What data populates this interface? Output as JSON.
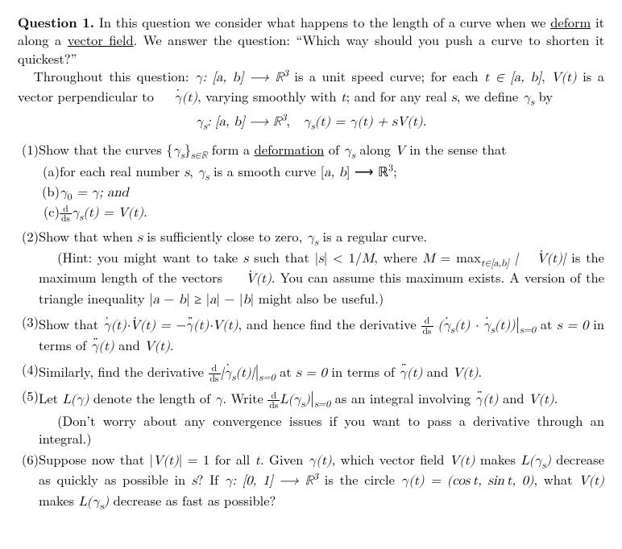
{
  "header": {
    "label": "Question 1.",
    "intro1": "In this question we consider what happens to the length of a curve when we ",
    "deform": "deform",
    "intro2": " it along a ",
    "vectorfield": "vector field",
    "intro3": ". We answer the question: “Which way should you push a curve to shorten it quickest?”"
  },
  "setup": {
    "lead": "Throughout this question: ",
    "part_a": "γ: [a, b] ⟶ ℝ",
    "sup3": "3",
    "cont1": " is a unit speed curve; for each ",
    "tset": "t ∈ [a, b]",
    "cont2": ", ",
    "Vt": "V(t)",
    "cont3": " is a vector perpendicular to ",
    "gammadot": "γ̇(t)",
    "cont4": ", varying smoothly with ",
    "tvar": "t",
    "cont5": "; and for any real ",
    "svar": "s",
    "cont6": ", we define ",
    "gammas": "γ",
    "subs": "s",
    "by": " by"
  },
  "display": {
    "lhs": "γ",
    "sub": "s",
    "mid": ": [a, b] ⟶ ℝ",
    "sup": "3",
    "comma": ",   ",
    "rhs_l": "γ",
    "rhs_mid": "(t) = γ(t) + sV(t)."
  },
  "item1": {
    "num": "(1)",
    "text1": "Show that the curves {",
    "gamma": "γ",
    "sub": "s",
    "text1b": "}",
    "subR": "s∈ℝ",
    "text2": " form a ",
    "deformation": "deformation",
    "text3": " of ",
    "text4": " along ",
    "V": "V",
    "text5": " in the sense that",
    "a": {
      "num": "(a)",
      "t1": "for each real number ",
      "s": "s",
      "t2": ", ",
      "gs": "γ",
      "sub": "s",
      "t3": " is a smooth curve [",
      "ab": "a, b",
      "t4": "] ⟶ ℝ",
      "sup": "3",
      "t5": ";"
    },
    "b": {
      "num": "(b)",
      "t": "γ",
      "sub0": "0",
      "eq": " = γ; and"
    },
    "c": {
      "num": "(c)",
      "fracn": "d",
      "fracd": "ds",
      "gs": "γ",
      "sub": "s",
      "t": "(t) = V(t)."
    }
  },
  "item2": {
    "num": "(2)",
    "t1": "Show that when ",
    "s": "s",
    "t2": " is sufficiently close to zero, ",
    "gs": "γ",
    "sub": "s",
    "t3": " is a regular curve.",
    "hint1": "(Hint: you might want to take ",
    "s2": "s",
    "hint2": " such that |",
    "s3": "s",
    "hint3": "| < 1/",
    "M": "M",
    "hint4": ", where ",
    "M2": "M",
    " eq": " = max",
    "maxsub": "t∈[a,b]",
    "vdot": " |V̇(t)|",
    "hint5": " is the maximum length of the vectors ",
    "vdot2": "V̇(t)",
    "hint6": ". You can assume this maximum exists. A version of the triangle inequality |",
    "a": "a",
    "minus": " − ",
    "b": "b",
    "geq": "| ≥ |",
    "a2": "a",
    "mid": "| − |",
    "b2": "b",
    "hint7": "| might also be useful.)"
  },
  "item3": {
    "num": "(3)",
    "t1": "Show that ",
    "eq": "γ̇(t)·V̇(t) = −γ̈(t)·V(t)",
    "t2": ", and hence find the derivative ",
    "fracn": "d",
    "fracd": "ds",
    "paren": " (γ̇",
    "sub": "s",
    "paren2": "(t) · γ̇",
    "paren3": "(t))",
    "bar": "|",
    "barsub": "s=0",
    "t3": " at ",
    "s0": "s = 0",
    "t4": " in terms of ",
    "gdd": "γ̈(t)",
    "and": " and ",
    "Vt": "V(t)",
    "dot": "."
  },
  "item4": {
    "num": "(4)",
    "t1": "Similarly, find the derivative ",
    "fracn": "d",
    "fracd": "ds",
    "abs": "|γ̇",
    "sub": "s",
    "abs2": "(t)|",
    "bar": "|",
    "barsub": "s=0",
    "t2": " at ",
    "s0": "s = 0",
    "t3": " in terms of ",
    "gdd": "γ̈(t)",
    "and": " and ",
    "Vt": "V(t)",
    "dot": "."
  },
  "item5": {
    "num": "(5)",
    "t1": "Let ",
    "L": "L(γ)",
    "t2": " denote the length of ",
    "g": "γ",
    "t3": ". Write ",
    "fracn": "d",
    "fracd": "ds",
    "Lgs": "L(γ",
    "sub": "s",
    "close": ")",
    "bar": "|",
    "barsub": "s=0",
    "t4": " as an integral involving ",
    "gdd": "γ̈(t)",
    "and": " and ",
    "Vt": "V(t)",
    "dot": ".",
    "hint": "(Don’t worry about any convergence issues if you want to pass a derivative through an integral.)"
  },
  "item6": {
    "num": "(6)",
    "t1": "Suppose now that |",
    "Vt": "V(t)",
    "t2": "| = 1 for all ",
    "t": "t",
    "t3": ". Given ",
    "gt": "γ(t)",
    "t4": ", which vector field ",
    "Vt2": "V(t)",
    "t5": " makes ",
    "Lgs": "L(γ",
    "sub": "s",
    "close": ")",
    "t6": " decrease as quickly as possible in ",
    "s": "s",
    "t7": "? If ",
    "gmap": "γ: [0, 1] ⟶ ℝ",
    "sup": "3",
    "t8": " is the circle ",
    "geq": "γ(t) = (cos t, sin t, 0)",
    "t9": ", what ",
    "Vt3": "V(t)",
    "t10": " makes ",
    "Lgs2": "L(γ",
    "t11": " decrease as fast as possible?"
  }
}
